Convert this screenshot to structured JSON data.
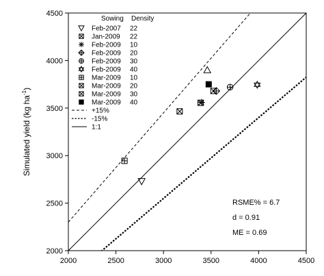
{
  "chart_data": {
    "type": "scatter",
    "title": "",
    "xlabel": "",
    "ylabel": "Simulated yield (kg ha",
    "ylabel_sup": "-1",
    "ylabel_close": ")",
    "xlim": [
      2000,
      4500
    ],
    "ylim": [
      2000,
      4500
    ],
    "x_ticks": [
      2000,
      2500,
      3000,
      3500,
      4000,
      4500
    ],
    "y_ticks": [
      2000,
      2500,
      3000,
      3500,
      4000,
      4500
    ],
    "grid": false,
    "legend_position": "top-left",
    "legend_headers": [
      "Sowing",
      "Density"
    ],
    "series": [
      {
        "name": "Feb-2007",
        "density": "22",
        "marker": "triangle-down",
        "points": [
          [
            2770,
            2730
          ]
        ]
      },
      {
        "name": "Jan-2009",
        "density": "22",
        "marker": "box-x",
        "points": [
          [
            3390,
            3555
          ]
        ]
      },
      {
        "name": "Feb-2009",
        "density": "10",
        "marker": "asterisk",
        "points": [
          [
            3400,
            3560
          ]
        ]
      },
      {
        "name": "Feb-2009",
        "density": "20",
        "marker": "diamond-cross",
        "points": [
          [
            3555,
            3680
          ]
        ]
      },
      {
        "name": "Feb-2009",
        "density": "30",
        "marker": "circle-cross",
        "points": [
          [
            3700,
            3720
          ]
        ]
      },
      {
        "name": "Feb-2009",
        "density": "40",
        "marker": "star-of-david",
        "points": [
          [
            3985,
            3745
          ]
        ]
      },
      {
        "name": "Mar-2009",
        "density": "10",
        "marker": "square-plus",
        "points": [
          [
            2590,
            2945
          ]
        ]
      },
      {
        "name": "Mar-2009",
        "density": "20",
        "marker": "box-x",
        "points": [
          [
            3170,
            3465
          ]
        ]
      },
      {
        "name": "Mar-2009",
        "density": "30",
        "marker": "box-x",
        "points": [
          [
            3525,
            3680
          ]
        ]
      },
      {
        "name": "Mar-2009",
        "density": "40",
        "marker": "filled-square",
        "points": [
          [
            3475,
            3750
          ]
        ]
      },
      {
        "name": "",
        "density": "",
        "marker": "triangle-up-outline",
        "points": [
          [
            3460,
            3900
          ]
        ]
      }
    ],
    "reference_lines": [
      {
        "name": "+15%",
        "style": "dashed",
        "slope": 1.15
      },
      {
        "name": "-15%",
        "style": "dotted",
        "slope": 0.85
      },
      {
        "name": "1:1",
        "style": "solid",
        "slope": 1.0
      }
    ],
    "stats": [
      "RSME% = 6.7",
      "d = 0.91",
      "ME = 0.69"
    ]
  }
}
